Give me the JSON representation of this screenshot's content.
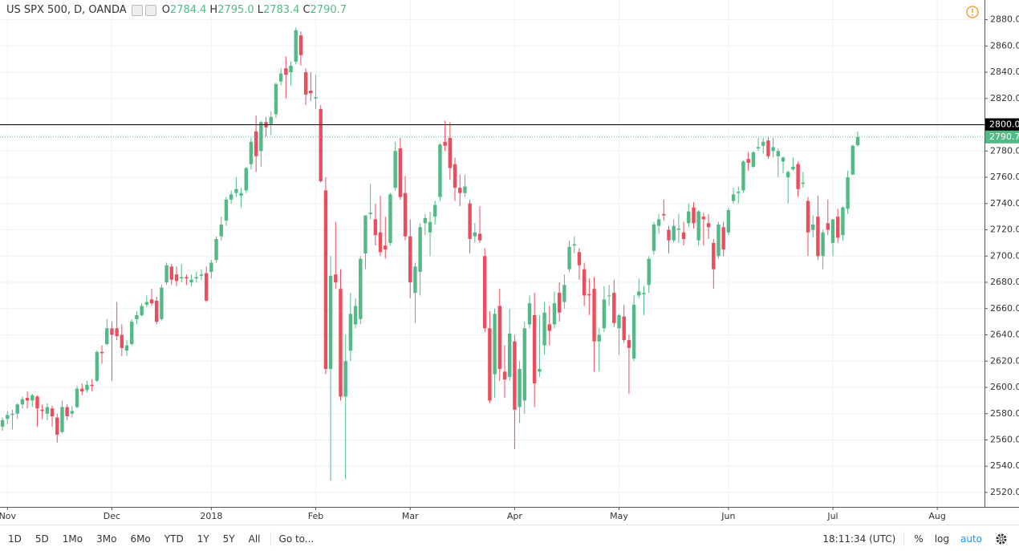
{
  "chart_data": {
    "type": "candlestick",
    "title": "US SPX 500, D, OANDA",
    "ohlc_labels": [
      {
        "letter": "O",
        "value": "2784.4"
      },
      {
        "letter": "H",
        "value": "2795.0"
      },
      {
        "letter": "L",
        "value": "2783.4"
      },
      {
        "letter": "C",
        "value": "2790.7"
      }
    ],
    "categories": [
      null,
      "Nov",
      null,
      null,
      null,
      null,
      null,
      null,
      null,
      null,
      null,
      null,
      null,
      null,
      null,
      null,
      null,
      null,
      null,
      null,
      null,
      null,
      "Dec",
      null,
      null,
      null,
      null,
      null,
      null,
      null,
      null,
      null,
      null,
      null,
      null,
      null,
      null,
      null,
      null,
      null,
      null,
      null,
      "2018",
      null,
      null,
      null,
      null,
      null,
      null,
      null,
      null,
      null,
      null,
      null,
      null,
      null,
      null,
      null,
      null,
      null,
      null,
      null,
      null,
      "Feb",
      null,
      null,
      null,
      null,
      null,
      null,
      null,
      null,
      null,
      null,
      null,
      null,
      null,
      null,
      null,
      null,
      null,
      null,
      "Mar",
      null,
      null,
      null,
      null,
      null,
      null,
      null,
      null,
      null,
      null,
      null,
      null,
      null,
      null,
      null,
      null,
      null,
      null,
      null,
      null,
      "Apr",
      null,
      null,
      null,
      null,
      null,
      null,
      null,
      null,
      null,
      null,
      null,
      null,
      null,
      null,
      null,
      null,
      null,
      null,
      null,
      null,
      "May",
      null,
      null,
      null,
      null,
      null,
      null,
      null,
      null,
      null,
      null,
      null,
      null,
      null,
      null,
      null,
      null,
      null,
      null,
      null,
      null,
      null,
      "Jun",
      null,
      null,
      null,
      null,
      null,
      null,
      null,
      null,
      null,
      null,
      null,
      null,
      null,
      null,
      null,
      null,
      null,
      null,
      null,
      null,
      "Jul",
      null,
      null,
      null,
      null,
      null,
      null,
      null,
      null,
      null,
      null,
      null,
      null,
      null,
      null,
      null,
      null,
      null,
      null,
      null,
      null,
      "Aug",
      null,
      null,
      null,
      null,
      null,
      null,
      null,
      null,
      null
    ],
    "open": [
      2570,
      2576,
      2579,
      2580,
      2587,
      2592,
      2590,
      2593,
      2583,
      2580,
      2584,
      2577,
      2566,
      2585,
      2580,
      2585,
      2599,
      2598,
      2602,
      2605,
      2627,
      2633,
      2645,
      2645,
      2640,
      2628,
      2633,
      2652,
      2655,
      2663,
      2667,
      2666,
      2652,
      2680,
      2692,
      2686,
      2683,
      2684,
      2680,
      2683,
      2685,
      2687,
      2688,
      2697,
      2715,
      2727,
      2743,
      2748,
      2746,
      2750,
      2770,
      2795,
      2780,
      2802,
      2800,
      2808,
      2833,
      2843,
      2840,
      2848,
      2868,
      2840,
      2826,
      2820,
      2812,
      2750,
      2614,
      2686,
      2675,
      2593,
      2628,
      2648,
      2652,
      2702,
      2732,
      2728,
      2718,
      2708,
      2710,
      2752,
      2782,
      2748,
      2715,
      2672,
      2688,
      2725,
      2718,
      2730,
      2745,
      2787,
      2790,
      2770,
      2752,
      2748,
      2740,
      2715,
      2717,
      2700,
      2645,
      2610,
      2662,
      2612,
      2608,
      2635,
      2585,
      2590,
      2648,
      2655,
      2612,
      2632,
      2648,
      2648,
      2672,
      2665,
      2690,
      2708,
      2703,
      2690,
      2671,
      2675,
      2635,
      2645,
      2670,
      2672,
      2645,
      2654,
      2636,
      2622,
      2670,
      2671,
      2678,
      2704,
      2723,
      2732,
      2720,
      2712,
      2720,
      2718,
      2725,
      2737,
      2712,
      2730,
      2725,
      2710,
      2700,
      2722,
      2718,
      2742,
      2748,
      2750,
      2774,
      2768,
      2782,
      2784,
      2788,
      2780,
      2776,
      2772,
      2760,
      2766,
      2770,
      2755,
      2742,
      2720,
      2730,
      2700,
      2725,
      2710,
      2730,
      2716,
      2736,
      2762,
      2784.4,
      null,
      null,
      null,
      null,
      null,
      null,
      null,
      null,
      null,
      null,
      null,
      null,
      null,
      null,
      null,
      null,
      null,
      null,
      null,
      null,
      null,
      null,
      null,
      null,
      null
    ],
    "high": [
      2577,
      2582,
      2583,
      2588,
      2593,
      2597,
      2595,
      2594,
      2587,
      2588,
      2586,
      2580,
      2590,
      2587,
      2586,
      2601,
      2603,
      2605,
      2606,
      2628,
      2632,
      2652,
      2650,
      2665,
      2648,
      2636,
      2652,
      2658,
      2664,
      2670,
      2675,
      2669,
      2678,
      2695,
      2694,
      2692,
      2694,
      2686,
      2686,
      2688,
      2690,
      2692,
      2697,
      2715,
      2730,
      2745,
      2750,
      2760,
      2752,
      2768,
      2790,
      2807,
      2803,
      2806,
      2810,
      2832,
      2843,
      2852,
      2848,
      2874,
      2871,
      2843,
      2840,
      2838,
      2815,
      2760,
      2700,
      2726,
      2690,
      2640,
      2672,
      2668,
      2700,
      2731,
      2755,
      2740,
      2746,
      2730,
      2748,
      2787,
      2790,
      2761,
      2728,
      2695,
      2725,
      2732,
      2734,
      2742,
      2786,
      2803,
      2802,
      2775,
      2762,
      2762,
      2743,
      2725,
      2738,
      2706,
      2658,
      2660,
      2675,
      2632,
      2660,
      2640,
      2620,
      2650,
      2670,
      2672,
      2655,
      2665,
      2662,
      2673,
      2680,
      2686,
      2712,
      2715,
      2706,
      2695,
      2683,
      2684,
      2645,
      2677,
      2678,
      2682,
      2656,
      2663,
      2640,
      2670,
      2683,
      2677,
      2700,
      2726,
      2732,
      2743,
      2723,
      2728,
      2732,
      2726,
      2740,
      2741,
      2735,
      2733,
      2732,
      2713,
      2726,
      2726,
      2737,
      2752,
      2753,
      2773,
      2779,
      2780,
      2790,
      2790,
      2791,
      2790,
      2782,
      2776,
      2765,
      2775,
      2772,
      2764,
      2745,
      2731,
      2746,
      2720,
      2743,
      2728,
      2736,
      2738,
      2765,
      2785,
      2795.0,
      null,
      null,
      null,
      null,
      null,
      null,
      null,
      null,
      null,
      null,
      null,
      null,
      null,
      null,
      null,
      null,
      null,
      null,
      null,
      null,
      null,
      null,
      null,
      null,
      null
    ],
    "low": [
      2567,
      2572,
      2568,
      2576,
      2584,
      2584,
      2585,
      2570,
      2576,
      2575,
      2570,
      2558,
      2565,
      2575,
      2577,
      2584,
      2594,
      2596,
      2597,
      2604,
      2618,
      2632,
      2605,
      2636,
      2624,
      2624,
      2632,
      2648,
      2654,
      2661,
      2662,
      2648,
      2651,
      2678,
      2678,
      2677,
      2680,
      2678,
      2677,
      2680,
      2682,
      2665,
      2683,
      2695,
      2712,
      2723,
      2740,
      2745,
      2737,
      2748,
      2766,
      2764,
      2768,
      2791,
      2792,
      2805,
      2830,
      2820,
      2830,
      2846,
      2845,
      2815,
      2818,
      2812,
      2756,
      2610,
      2529,
      2675,
      2590,
      2530,
      2620,
      2645,
      2648,
      2690,
      2728,
      2708,
      2700,
      2698,
      2708,
      2750,
      2743,
      2712,
      2668,
      2649,
      2670,
      2716,
      2700,
      2724,
      2742,
      2780,
      2758,
      2742,
      2738,
      2745,
      2702,
      2710,
      2710,
      2642,
      2588,
      2592,
      2605,
      2592,
      2605,
      2553,
      2573,
      2580,
      2645,
      2585,
      2608,
      2625,
      2632,
      2645,
      2650,
      2660,
      2688,
      2702,
      2682,
      2662,
      2655,
      2612,
      2612,
      2642,
      2662,
      2646,
      2625,
      2634,
      2595,
      2620,
      2668,
      2655,
      2672,
      2701,
      2717,
      2727,
      2702,
      2710,
      2710,
      2708,
      2722,
      2721,
      2708,
      2708,
      2713,
      2675,
      2698,
      2700,
      2716,
      2740,
      2740,
      2748,
      2765,
      2767,
      2780,
      2778,
      2774,
      2775,
      2760,
      2763,
      2740,
      2765,
      2745,
      2752,
      2700,
      2714,
      2697,
      2690,
      2716,
      2700,
      2710,
      2712,
      2732,
      2762,
      2783.4,
      null,
      null,
      null,
      null,
      null,
      null,
      null,
      null,
      null,
      null,
      null,
      null,
      null,
      null,
      null,
      null,
      null,
      null,
      null,
      null,
      null,
      null,
      null,
      null,
      null
    ],
    "close": [
      2575,
      2579,
      2580,
      2587,
      2591,
      2590,
      2594,
      2584,
      2582,
      2585,
      2578,
      2564,
      2585,
      2578,
      2582,
      2599,
      2597,
      2602,
      2601,
      2627,
      2626,
      2645,
      2640,
      2639,
      2630,
      2632,
      2650,
      2655,
      2662,
      2665,
      2664,
      2650,
      2676,
      2693,
      2682,
      2681,
      2684,
      2683,
      2682,
      2684,
      2686,
      2666,
      2695,
      2713,
      2724,
      2743,
      2747,
      2751,
      2748,
      2767,
      2787,
      2776,
      2802,
      2798,
      2806,
      2831,
      2839,
      2838,
      2845,
      2872,
      2853,
      2823,
      2824,
      2821,
      2757,
      2614,
      2685,
      2680,
      2593,
      2620,
      2656,
      2662,
      2698,
      2731,
      2733,
      2716,
      2703,
      2705,
      2747,
      2780,
      2745,
      2715,
      2680,
      2692,
      2722,
      2729,
      2726,
      2739,
      2785,
      2784,
      2767,
      2752,
      2748,
      2753,
      2713,
      2718,
      2712,
      2645,
      2590,
      2656,
      2614,
      2606,
      2641,
      2583,
      2614,
      2645,
      2664,
      2603,
      2614,
      2657,
      2643,
      2664,
      2657,
      2678,
      2707,
      2709,
      2693,
      2670,
      2670,
      2635,
      2640,
      2667,
      2670,
      2649,
      2655,
      2636,
      2630,
      2663,
      2673,
      2672,
      2698,
      2724,
      2728,
      2731,
      2712,
      2723,
      2721,
      2713,
      2734,
      2725,
      2734,
      2728,
      2722,
      2690,
      2724,
      2705,
      2735,
      2747,
      2749,
      2772,
      2771,
      2779,
      2783,
      2787,
      2776,
      2783,
      2780,
      2775,
      2764,
      2768,
      2751,
      2756,
      2718,
      2724,
      2700,
      2718,
      2720,
      2728,
      2714,
      2737,
      2760,
      2784,
      2790.7,
      null,
      null,
      null,
      null,
      null,
      null,
      null,
      null,
      null,
      null,
      null,
      null,
      null,
      null,
      null,
      null,
      null,
      null,
      null,
      null,
      null,
      null,
      null,
      null,
      null
    ],
    "up_color": "#53b987",
    "down_color": "#eb4d5c",
    "ylim": [
      2509,
      2895
    ],
    "yticks": [
      {
        "value": 2520,
        "label": "2520.0"
      },
      {
        "value": 2540,
        "label": "2540.0"
      },
      {
        "value": 2560,
        "label": "2560.0"
      },
      {
        "value": 2580,
        "label": "2580.0"
      },
      {
        "value": 2600,
        "label": "2600.0"
      },
      {
        "value": 2620,
        "label": "2620.0"
      },
      {
        "value": 2640,
        "label": "2640.0"
      },
      {
        "value": 2660,
        "label": "2660.0"
      },
      {
        "value": 2680,
        "label": "2680.0"
      },
      {
        "value": 2700,
        "label": "2700.0"
      },
      {
        "value": 2720,
        "label": "2720.0"
      },
      {
        "value": 2740,
        "label": "2740.0"
      },
      {
        "value": 2760,
        "label": "2760.0"
      },
      {
        "value": 2780,
        "label": "2780.0"
      },
      {
        "value": 2800,
        "label": "2800.0"
      },
      {
        "value": 2820,
        "label": "2820.0"
      },
      {
        "value": 2840,
        "label": "2840.0"
      },
      {
        "value": 2860,
        "label": "2860.0"
      },
      {
        "value": 2880,
        "label": "2880.0"
      }
    ],
    "grid": true,
    "hline": {
      "value": 2800,
      "label": "2800.0",
      "color": "#000000"
    }
  },
  "toolbar": {
    "ranges": [
      "1D",
      "5D",
      "1Mo",
      "3Mo",
      "6Mo",
      "YTD",
      "1Y",
      "5Y",
      "All"
    ],
    "goto": "Go to...",
    "time": "18:11:34 (UTC)",
    "percent": "%",
    "log": "log",
    "auto": "auto"
  }
}
